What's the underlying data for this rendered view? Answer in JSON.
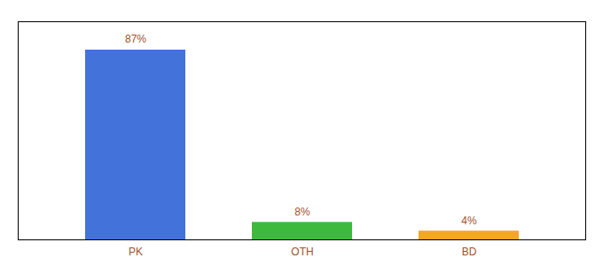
{
  "chart_data": {
    "type": "bar",
    "categories": [
      "PK",
      "OTH",
      "BD"
    ],
    "values": [
      87,
      8,
      4
    ],
    "value_labels": [
      "87%",
      "8%",
      "4%"
    ],
    "colors": [
      "#4472db",
      "#3dba3d",
      "#f5a623"
    ],
    "ylim": [
      0,
      100
    ],
    "grid": false,
    "data_labels": true,
    "tick_labels": "x"
  }
}
